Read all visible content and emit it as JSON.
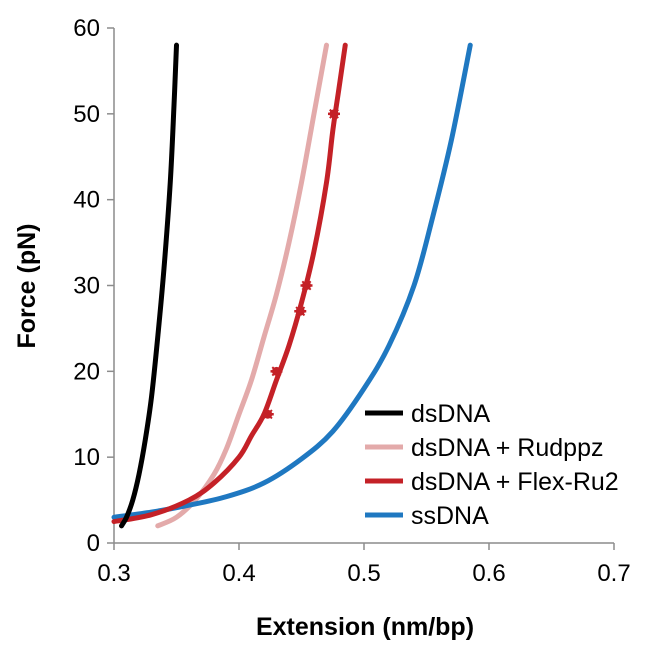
{
  "chart_data": {
    "type": "line",
    "title": "",
    "xlabel": "Extension (nm/bp)",
    "ylabel": "Force (pN)",
    "xlim": [
      0.3,
      0.7
    ],
    "ylim": [
      0,
      60
    ],
    "x_ticks": [
      "0.3",
      "0.4",
      "0.5",
      "0.6",
      "0.7"
    ],
    "y_ticks": [
      "0",
      "10",
      "20",
      "30",
      "40",
      "50",
      "60"
    ],
    "grid": false,
    "legend_position": "bottom-right",
    "series": [
      {
        "name": "dsDNA",
        "color": "#000000",
        "x": [
          0.306,
          0.31,
          0.315,
          0.32,
          0.325,
          0.33,
          0.335,
          0.34,
          0.345,
          0.348,
          0.35
        ],
        "y": [
          2,
          3,
          5,
          8,
          12,
          17,
          24,
          32,
          42,
          51,
          58
        ]
      },
      {
        "name": "dsDNA + Rudppz",
        "color": "#e3aaaa",
        "x": [
          0.335,
          0.35,
          0.365,
          0.38,
          0.39,
          0.4,
          0.41,
          0.42,
          0.43,
          0.44,
          0.45,
          0.46,
          0.47
        ],
        "y": [
          2,
          3,
          5,
          8,
          11,
          15,
          19,
          24,
          29,
          35,
          42,
          50,
          58
        ]
      },
      {
        "name": "dsDNA + Flex-Ru2",
        "color": "#c42127",
        "x": [
          0.3,
          0.33,
          0.36,
          0.38,
          0.4,
          0.41,
          0.42,
          0.43,
          0.44,
          0.45,
          0.46,
          0.47,
          0.475,
          0.48,
          0.485
        ],
        "y": [
          2.5,
          3.3,
          5,
          7,
          10,
          12.5,
          15,
          19,
          23,
          28,
          34,
          42,
          48,
          53,
          58
        ]
      },
      {
        "name": "ssDNA",
        "color": "#1f78c1",
        "x": [
          0.3,
          0.33,
          0.36,
          0.39,
          0.42,
          0.45,
          0.475,
          0.5,
          0.52,
          0.54,
          0.555,
          0.57,
          0.585
        ],
        "y": [
          3,
          3.6,
          4.4,
          5.4,
          7,
          9.8,
          13,
          18,
          23,
          30,
          38,
          47,
          58
        ]
      }
    ],
    "markers": {
      "series": "dsDNA + Flex-Ru2",
      "color": "#c42127",
      "x": [
        0.423,
        0.43,
        0.449,
        0.454,
        0.476
      ],
      "y": [
        15,
        20,
        27,
        30,
        50
      ]
    }
  }
}
